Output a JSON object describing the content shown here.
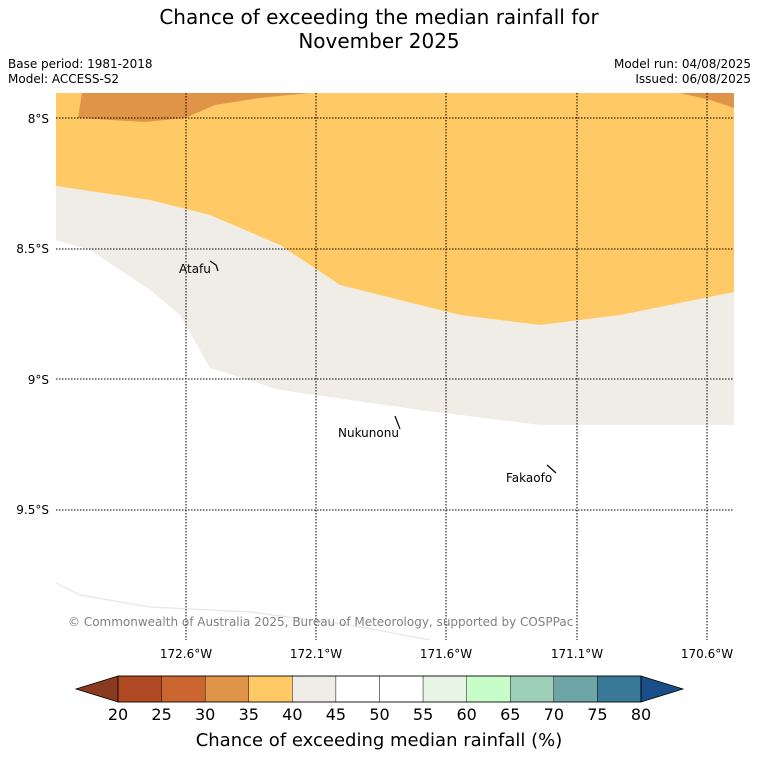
{
  "title_line1": "Chance of exceeding the median rainfall for",
  "title_line2": "November 2025",
  "base_period": "Base period: 1981-2018",
  "model": "Model: ACCESS-S2",
  "model_run": "Model run: 04/08/2025",
  "issued": "Issued: 06/08/2025",
  "copyright": "© Commonwealth of Australia 2025, Bureau of Meteorology, supported by COSPPac",
  "lat_labels": [
    "8°S",
    "8.5°S",
    "9°S",
    "9.5°S"
  ],
  "lon_labels": [
    "172.6°W",
    "172.1°W",
    "171.6°W",
    "171.1°W",
    "170.6°W"
  ],
  "places": [
    "Atafu",
    "Nukunonu",
    "Fakaofo"
  ],
  "colorbar": {
    "ticks": [
      "20",
      "25",
      "30",
      "35",
      "40",
      "45",
      "50",
      "55",
      "60",
      "65",
      "70",
      "75",
      "80"
    ],
    "colors": [
      "#8a3a1e",
      "#b04a24",
      "#cc6630",
      "#e09448",
      "#ffca66",
      "#f0ece6",
      "#ffffff",
      "#ffffff",
      "#e8f4e6",
      "#c8fcc8",
      "#9ed0b8",
      "#6ea6a6",
      "#3a7898",
      "#1a4e88"
    ],
    "label": "Chance of exceeding median rainfall (%)"
  },
  "colors": {
    "band_30_35": "#e09448",
    "band_35_40": "#ffca66",
    "band_40_45": "#f0ece6"
  }
}
